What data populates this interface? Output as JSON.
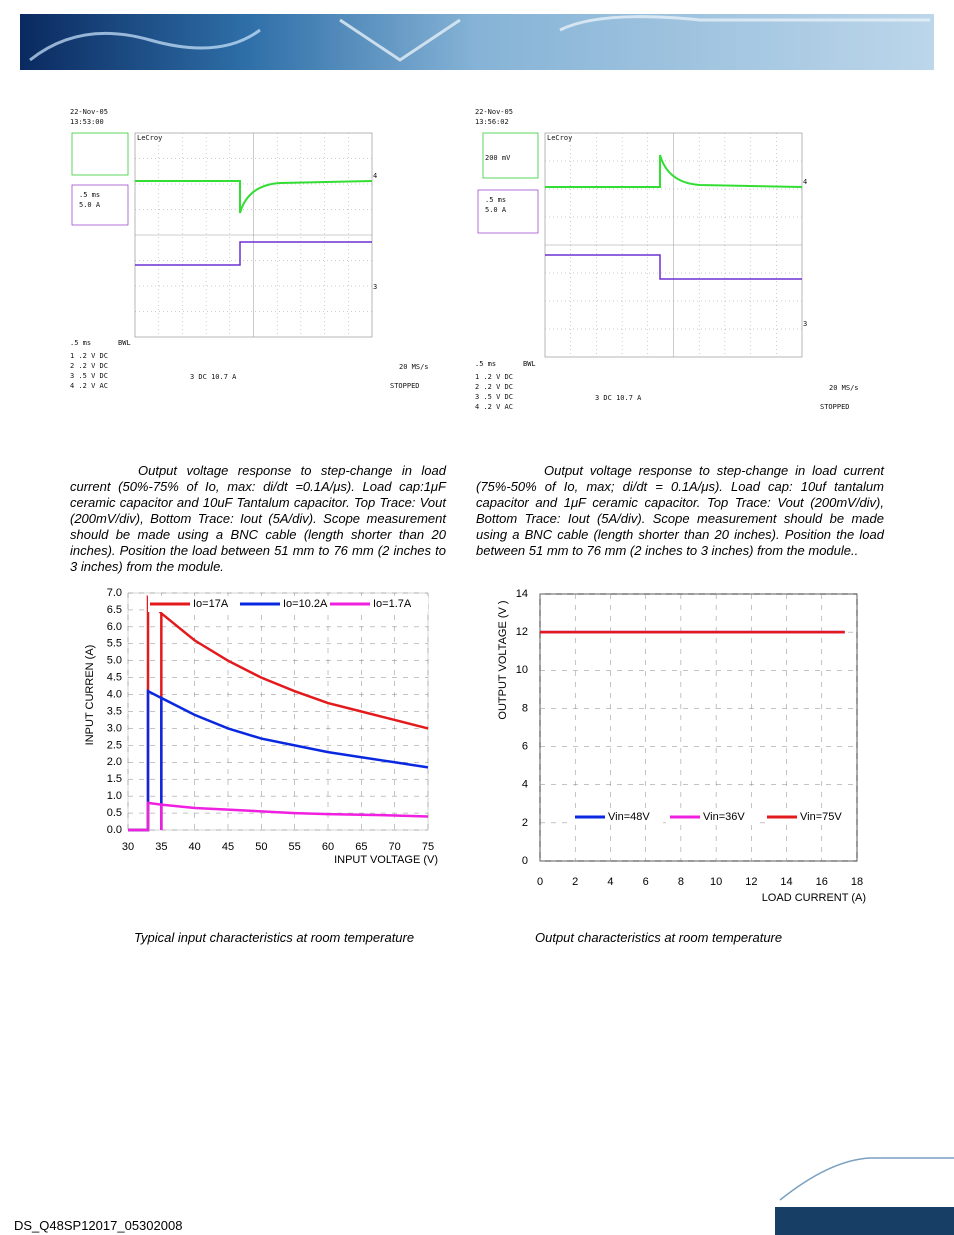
{
  "scopes": [
    {
      "date": "22-Nov-05",
      "time": "13:53:00",
      "brand": "LeCroy",
      "box_lines": [
        ".5 ms",
        "5.0 A"
      ],
      "timebase": ".5 ms",
      "bandwidth": "BWL",
      "channels": [
        "1 .2 V DC",
        "2 .2 V DC",
        "3 .5 V DC",
        "4 .2 V AC"
      ],
      "sample_rate": "20 MS/s",
      "trigger": "3 DC 10.7 A",
      "status": "STOPPED",
      "trace_labels": [
        "4",
        "3"
      ]
    },
    {
      "date": "22-Nov-05",
      "time": "13:56:02",
      "brand": "LeCroy",
      "scale": "200 mV",
      "box_lines": [
        ".5 ms",
        "5.0 A"
      ],
      "timebase": ".5 ms",
      "bandwidth": "BWL",
      "channels": [
        "1 .2 V DC",
        "2 .2 V DC",
        "3 .5 V DC",
        "4 .2 V AC"
      ],
      "sample_rate": "20 MS/s",
      "trigger": "3 DC 10.7 A",
      "status": "STOPPED",
      "trace_labels": [
        "4",
        "3"
      ]
    }
  ],
  "captions": [
    "Output voltage response to step-change in load current (50%-75% of Io, max: di/dt =0.1A/μs). Load cap:1μF ceramic capacitor and 10uF Tantalum capacitor. Top Trace: Vout (200mV/div), Bottom Trace: Iout (5A/div). Scope measurement should be made using a BNC cable (length shorter than 20 inches). Position the load between 51 mm to 76 mm (2 inches to 3 inches) from the module.",
    "Output voltage response to step-change in load current (75%-50% of Io, max; di/dt = 0.1A/μs). Load cap: 10uf tantalum capacitor and 1μF ceramic capacitor. Top Trace: Vout (200mV/div), Bottom Trace: Iout (5A/div). Scope measurement should be made using a BNC cable (length shorter than 20 inches). Position the load between 51 mm to 76 mm (2 inches to 3 inches) from the module.."
  ],
  "chart_data": [
    {
      "type": "line",
      "x_label": "INPUT VOLTAGE (V)",
      "y_label": "INPUT CURREN (A)",
      "xlim": [
        30,
        75
      ],
      "ylim": [
        0,
        7
      ],
      "xticks": [
        30,
        35,
        40,
        45,
        50,
        55,
        60,
        65,
        70,
        75
      ],
      "yticks": [
        {
          "value": 0,
          "label": "0.0"
        },
        {
          "value": 0.5,
          "label": "0.5"
        },
        {
          "value": 1,
          "label": "1.0"
        },
        {
          "value": 1.5,
          "label": "1.5"
        },
        {
          "value": 2,
          "label": "2.0"
        },
        {
          "value": 2.5,
          "label": "2.5"
        },
        {
          "value": 3,
          "label": "3.0"
        },
        {
          "value": 3.5,
          "label": "3.5"
        },
        {
          "value": 4,
          "label": "4.0"
        },
        {
          "value": 4.5,
          "label": "4.5"
        },
        {
          "value": 5,
          "label": "5.0"
        },
        {
          "value": 5.5,
          "label": "5.5"
        },
        {
          "value": 6,
          "label": "6.0"
        },
        {
          "value": 6.5,
          "label": "6.5"
        },
        {
          "value": 7,
          "label": "7.0"
        }
      ],
      "grid": true,
      "legend": "top",
      "series": [
        {
          "name": "Io=17A",
          "color": "#e31a1c",
          "x": [
            30,
            33,
            33,
            35,
            35,
            35,
            40,
            45,
            50,
            55,
            60,
            65,
            70,
            75
          ],
          "values": [
            0,
            0,
            6.85,
            6.4,
            0,
            6.4,
            5.6,
            5.0,
            4.5,
            4.1,
            3.75,
            3.5,
            3.25,
            3.0
          ]
        },
        {
          "name": "Io=10.2A",
          "color": "#0a28e0",
          "x": [
            30,
            33,
            33,
            35,
            35,
            35,
            40,
            45,
            50,
            55,
            60,
            65,
            70,
            75
          ],
          "values": [
            0,
            0,
            4.1,
            3.9,
            0,
            3.9,
            3.4,
            3.0,
            2.7,
            2.5,
            2.3,
            2.15,
            2.0,
            1.85
          ]
        },
        {
          "name": "Io=1.7A",
          "color": "#f020e0",
          "x": [
            30,
            33,
            33,
            35,
            35,
            35,
            40,
            45,
            50,
            55,
            60,
            65,
            70,
            75
          ],
          "values": [
            0,
            0,
            0.8,
            0.75,
            0,
            0.75,
            0.65,
            0.6,
            0.55,
            0.5,
            0.47,
            0.45,
            0.43,
            0.4
          ]
        }
      ]
    },
    {
      "type": "line",
      "x_label": "LOAD CURRENT (A)",
      "y_label": "OUTPUT VOLTAGE (V )",
      "xlim": [
        0,
        18
      ],
      "ylim": [
        0,
        14
      ],
      "xticks": [
        0,
        2,
        4,
        6,
        8,
        10,
        12,
        14,
        16,
        18
      ],
      "yticks": [
        0,
        2,
        4,
        6,
        8,
        10,
        12,
        14
      ],
      "grid": true,
      "legend": "bottom",
      "series": [
        {
          "name": "Vin=48V",
          "color": "#0a28e0",
          "x": [
            0,
            17.3
          ],
          "values": [
            12,
            12
          ]
        },
        {
          "name": "Vin=36V",
          "color": "#f020e0",
          "x": [
            0,
            17.3
          ],
          "values": [
            12,
            12
          ]
        },
        {
          "name": "Vin=75V",
          "color": "#e31a1c",
          "x": [
            0,
            17.3
          ],
          "values": [
            12,
            12
          ]
        }
      ]
    }
  ],
  "figure_captions": [
    "Typical input characteristics at room temperature",
    "Output characteristics at room temperature"
  ],
  "footer": "DS_Q48SP12017_05302008"
}
